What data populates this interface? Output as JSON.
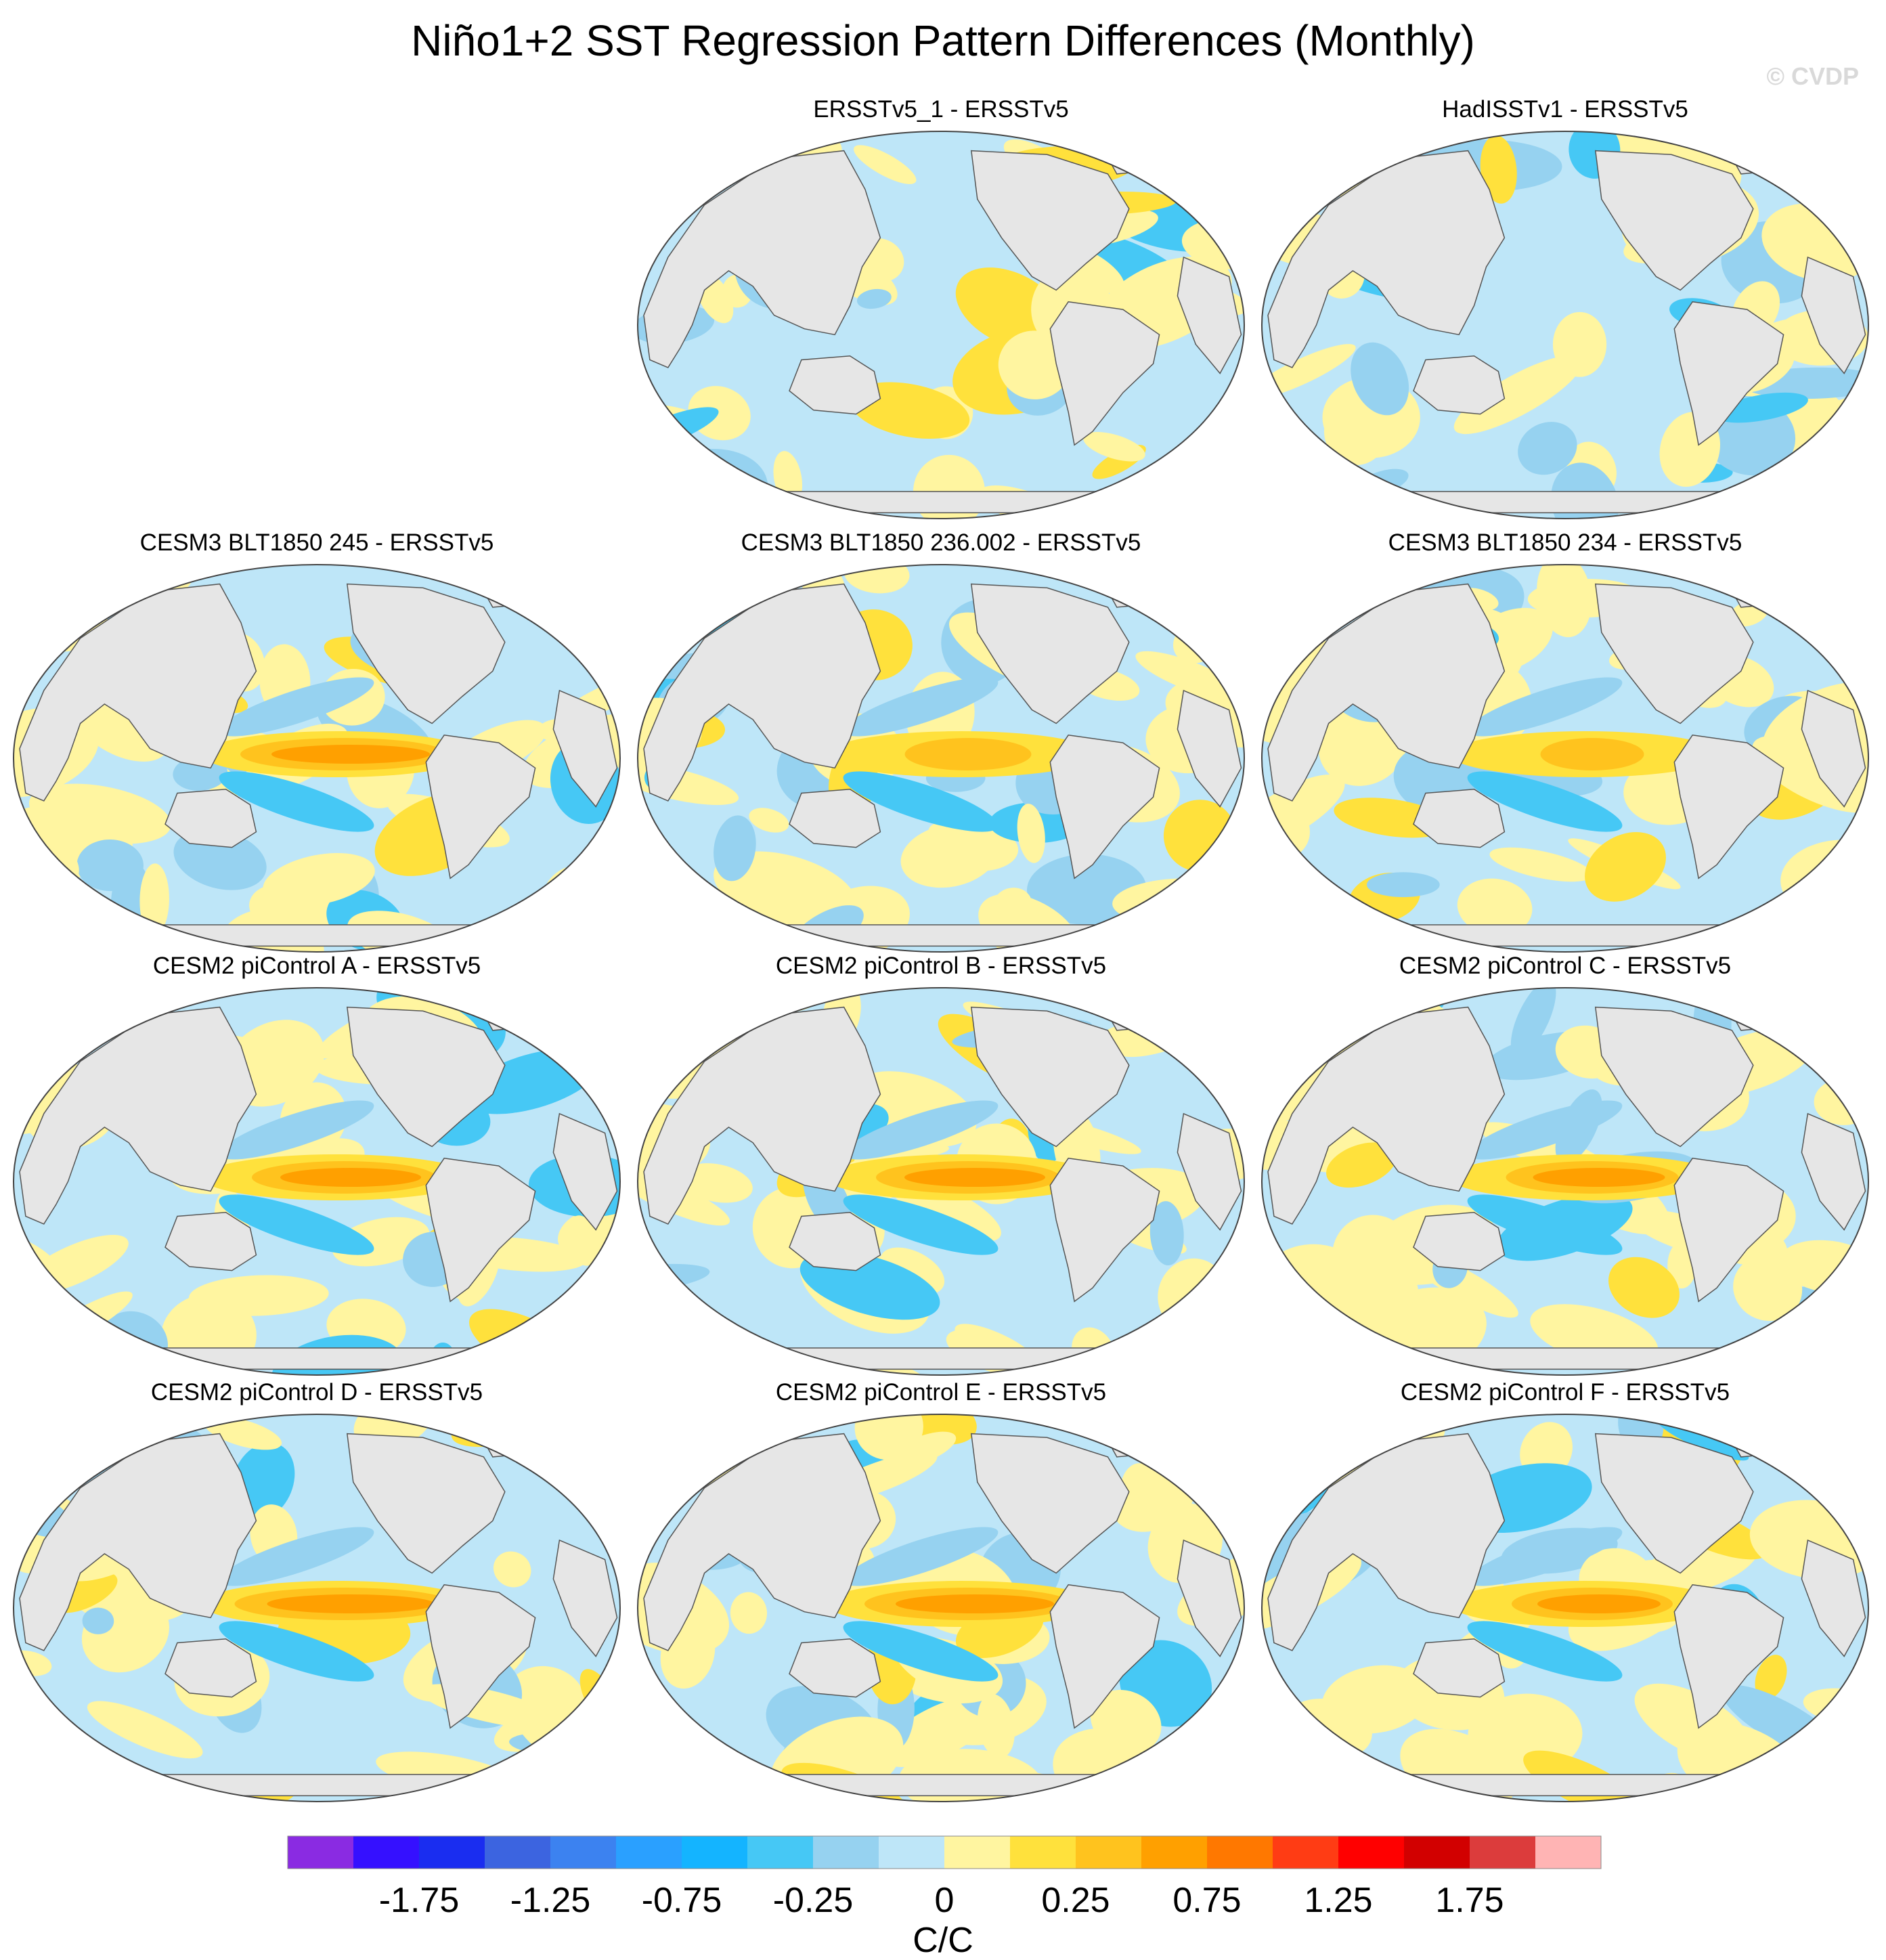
{
  "title": "Niño1+2 SST Regression Pattern Differences (Monthly)",
  "watermark": "© CVDP",
  "panels": [
    {
      "title": "ERSSTv5_1 - ERSSTv5",
      "row": 0,
      "col": 1,
      "enso_strength": 0.0
    },
    {
      "title": "HadISSTv1 - ERSSTv5",
      "row": 0,
      "col": 2,
      "enso_strength": 0.0
    },
    {
      "title": "CESM3 BLT1850 245 - ERSSTv5",
      "row": 1,
      "col": 0,
      "enso_strength": 0.9
    },
    {
      "title": "CESM3 BLT1850 236.002 - ERSSTv5",
      "row": 1,
      "col": 1,
      "enso_strength": 0.55
    },
    {
      "title": "CESM3 BLT1850 234 - ERSSTv5",
      "row": 1,
      "col": 2,
      "enso_strength": 0.45
    },
    {
      "title": "CESM2 piControl A - ERSSTv5",
      "row": 2,
      "col": 0,
      "enso_strength": 0.8
    },
    {
      "title": "CESM2 piControl B - ERSSTv5",
      "row": 2,
      "col": 1,
      "enso_strength": 0.8
    },
    {
      "title": "CESM2 piControl C - ERSSTv5",
      "row": 2,
      "col": 2,
      "enso_strength": 0.75
    },
    {
      "title": "CESM2 piControl D - ERSSTv5",
      "row": 3,
      "col": 0,
      "enso_strength": 0.95
    },
    {
      "title": "CESM2 piControl E - ERSSTv5",
      "row": 3,
      "col": 1,
      "enso_strength": 0.9
    },
    {
      "title": "CESM2 piControl F - ERSSTv5",
      "row": 3,
      "col": 2,
      "enso_strength": 0.7
    }
  ],
  "colorbar": {
    "unit": "C/C",
    "colors": [
      "#8a2be2",
      "#3510ff",
      "#1a2df0",
      "#3c64e0",
      "#3c82f0",
      "#2aa0ff",
      "#14b4ff",
      "#46c8f5",
      "#96d2f0",
      "#bee6f8",
      "#fff5a0",
      "#ffe13c",
      "#ffc31e",
      "#ffa000",
      "#ff7800",
      "#ff3c14",
      "#ff0000",
      "#d20000",
      "#dc3c3c",
      "#ffb4b4"
    ],
    "tick_labels": [
      "-1.75",
      "-1.25",
      "-0.75",
      "-0.25",
      "0",
      "0.25",
      "0.75",
      "1.25",
      "1.75"
    ]
  }
}
